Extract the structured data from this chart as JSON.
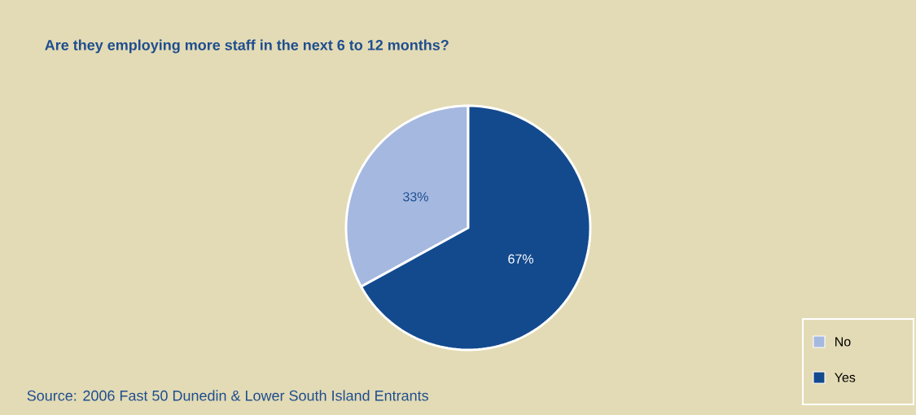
{
  "chart_data": {
    "type": "pie",
    "title": "Are they employing more staff in the next 6 to 12 months?",
    "categories": [
      "No",
      "Yes"
    ],
    "values": [
      33,
      67
    ],
    "colors": [
      "#a5b8e0",
      "#134a8e"
    ],
    "value_labels": [
      "33%",
      "67%"
    ],
    "legend": "bottom right",
    "annotations": [
      "Source: 2006 Fast 50 Dunedin & Lower South Island Entrants"
    ]
  }
}
